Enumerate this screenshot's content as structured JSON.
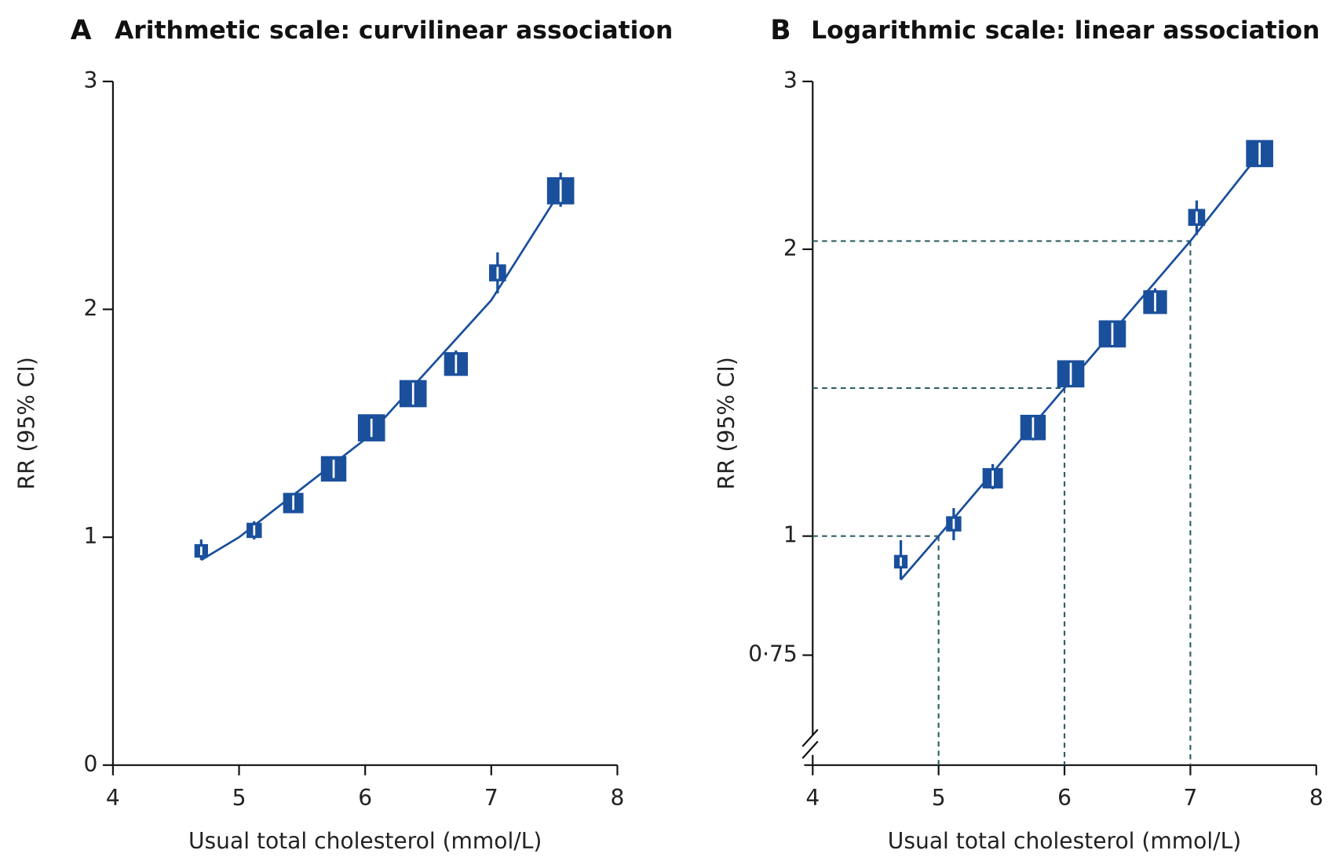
{
  "chart_data": [
    {
      "type": "scatter",
      "panel": "A",
      "title": "Arithmetic scale: curvilinear association",
      "x_label": "Usual total cholesterol (mmol/L)",
      "y_label": "RR (95% CI)",
      "x": [
        4.7,
        5.12,
        5.43,
        5.75,
        6.05,
        6.38,
        6.72,
        7.05,
        7.55
      ],
      "values": [
        0.94,
        1.03,
        1.15,
        1.3,
        1.48,
        1.63,
        1.76,
        2.16,
        2.52
      ],
      "ci_low": [
        0.9,
        0.99,
        1.12,
        1.26,
        1.44,
        1.58,
        1.71,
        2.07,
        2.45
      ],
      "ci_high": [
        0.99,
        1.07,
        1.19,
        1.34,
        1.52,
        1.68,
        1.82,
        2.25,
        2.6
      ],
      "marker_sizes": [
        8,
        9,
        12,
        15,
        16,
        16,
        14,
        10,
        16
      ],
      "fit": {
        "x": [
          4.7,
          5.0,
          6.0,
          7.0,
          7.55
        ],
        "values": [
          0.9,
          1.0,
          1.43,
          2.04,
          2.52
        ]
      },
      "color": "#1a4f9c",
      "xlim": [
        4,
        8
      ],
      "xticks": [
        4,
        5,
        6,
        7,
        8
      ],
      "ylim": [
        0,
        3
      ],
      "yticks": [
        0,
        1,
        2,
        3
      ],
      "log_y": false,
      "axis_break": false
    },
    {
      "type": "scatter",
      "panel": "B",
      "title": "Logarithmic scale: linear association",
      "x_label": "Usual total cholesterol (mmol/L)",
      "y_label": "RR (95% CI)",
      "x": [
        4.7,
        5.12,
        5.43,
        5.75,
        6.05,
        6.38,
        6.72,
        7.05,
        7.55
      ],
      "values": [
        0.94,
        1.03,
        1.15,
        1.3,
        1.48,
        1.63,
        1.76,
        2.16,
        2.52
      ],
      "ci_low": [
        0.9,
        0.99,
        1.12,
        1.26,
        1.44,
        1.58,
        1.71,
        2.07,
        2.45
      ],
      "ci_high": [
        0.99,
        1.07,
        1.19,
        1.34,
        1.52,
        1.68,
        1.82,
        2.25,
        2.6
      ],
      "marker_sizes": [
        8,
        9,
        12,
        15,
        16,
        16,
        14,
        10,
        16
      ],
      "fit": {
        "x": [
          4.7,
          5.0,
          6.0,
          7.0,
          7.55
        ],
        "values": [
          0.9,
          1.0,
          1.43,
          2.04,
          2.52
        ]
      },
      "reference_lines": [
        {
          "x": 5,
          "y": 1.0
        },
        {
          "x": 6,
          "y": 1.43
        },
        {
          "x": 7,
          "y": 2.04
        }
      ],
      "reference_color": "#2f5f66",
      "color": "#1a4f9c",
      "xlim": [
        4,
        8
      ],
      "xticks": [
        4,
        5,
        6,
        7,
        8
      ],
      "ylim": [
        0.575,
        3
      ],
      "yticks": [
        {
          "value": 0.75,
          "label": "0·75"
        },
        1,
        2,
        3
      ],
      "log_y": true,
      "axis_break": true
    }
  ]
}
